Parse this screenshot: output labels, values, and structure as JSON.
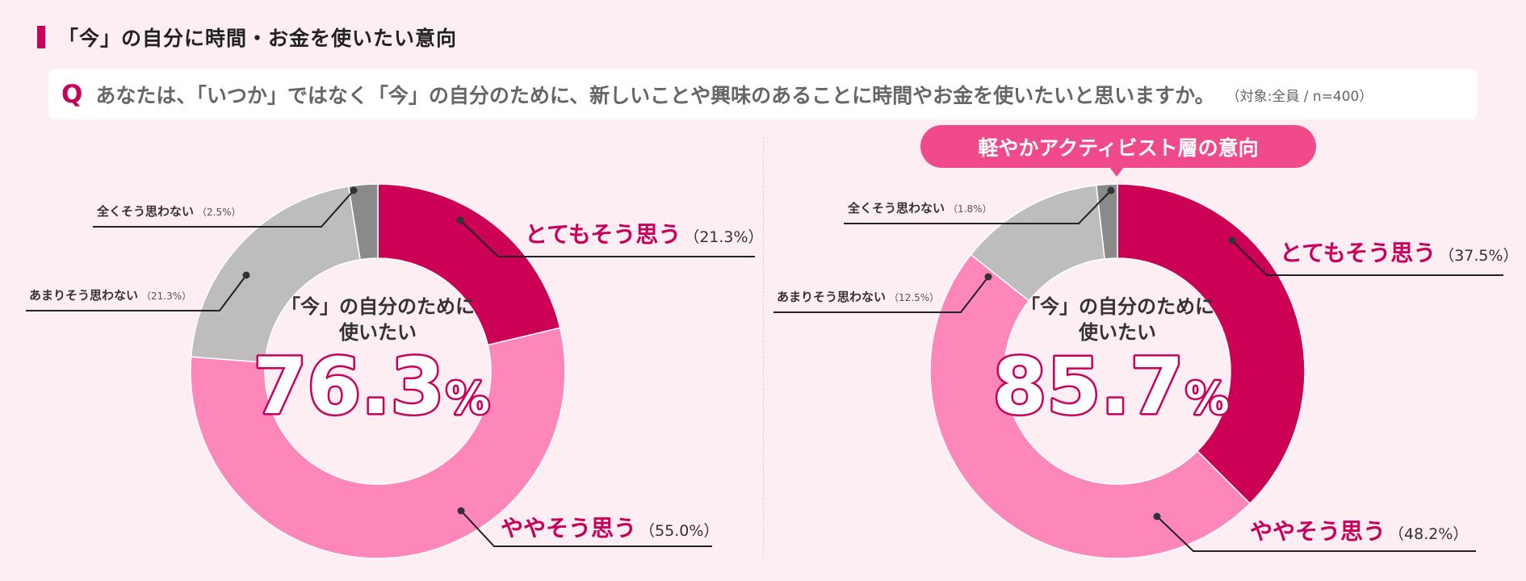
{
  "header": {
    "title": "「今」の自分に時間・お金を使いたい意向",
    "question_mark": "Q",
    "question": "あなたは、「いつか」ではなく「今」の自分のために、新しいことや興味のあることに時間やお金を使いたいと思いますか。",
    "question_note": "（対象:全員 / n=400）"
  },
  "badge": {
    "label": "軽やかアクティビスト層の意向"
  },
  "colors": {
    "strong_agree": "#cc0055",
    "somewhat_agree": "#fd87b9",
    "not_much": "#bdbdbd",
    "not_at_all": "#8a8a8a",
    "accent_text": "#c8005a"
  },
  "chart_data": [
    {
      "type": "pie",
      "donut": true,
      "center_label_line1": "「今」の自分のために",
      "center_label_line2": "使いたい",
      "center_value": "76.3",
      "center_unit": "%",
      "slices": [
        {
          "label": "とてもそう思う",
          "value": 21.3,
          "value_text": "（21.3%）",
          "color": "#cc0055",
          "emphasis": true
        },
        {
          "label": "ややそう思う",
          "value": 55.0,
          "value_text": "（55.0%）",
          "color": "#fd87b9",
          "emphasis": true
        },
        {
          "label": "あまりそう思わない",
          "value": 21.3,
          "value_text": "（21.3%）",
          "color": "#bdbdbd",
          "emphasis": false
        },
        {
          "label": "全くそう思わない",
          "value": 2.5,
          "value_text": "（2.5%）",
          "color": "#8a8a8a",
          "emphasis": false
        }
      ]
    },
    {
      "type": "pie",
      "donut": true,
      "center_label_line1": "「今」の自分のために",
      "center_label_line2": "使いたい",
      "center_value": "85.7",
      "center_unit": "%",
      "slices": [
        {
          "label": "とてもそう思う",
          "value": 37.5,
          "value_text": "（37.5%）",
          "color": "#cc0055",
          "emphasis": true
        },
        {
          "label": "ややそう思う",
          "value": 48.2,
          "value_text": "（48.2%）",
          "color": "#fd87b9",
          "emphasis": true
        },
        {
          "label": "あまりそう思わない",
          "value": 12.5,
          "value_text": "（12.5%）",
          "color": "#bdbdbd",
          "emphasis": false
        },
        {
          "label": "全くそう思わない",
          "value": 1.8,
          "value_text": "（1.8%）",
          "color": "#8a8a8a",
          "emphasis": false
        }
      ]
    }
  ]
}
